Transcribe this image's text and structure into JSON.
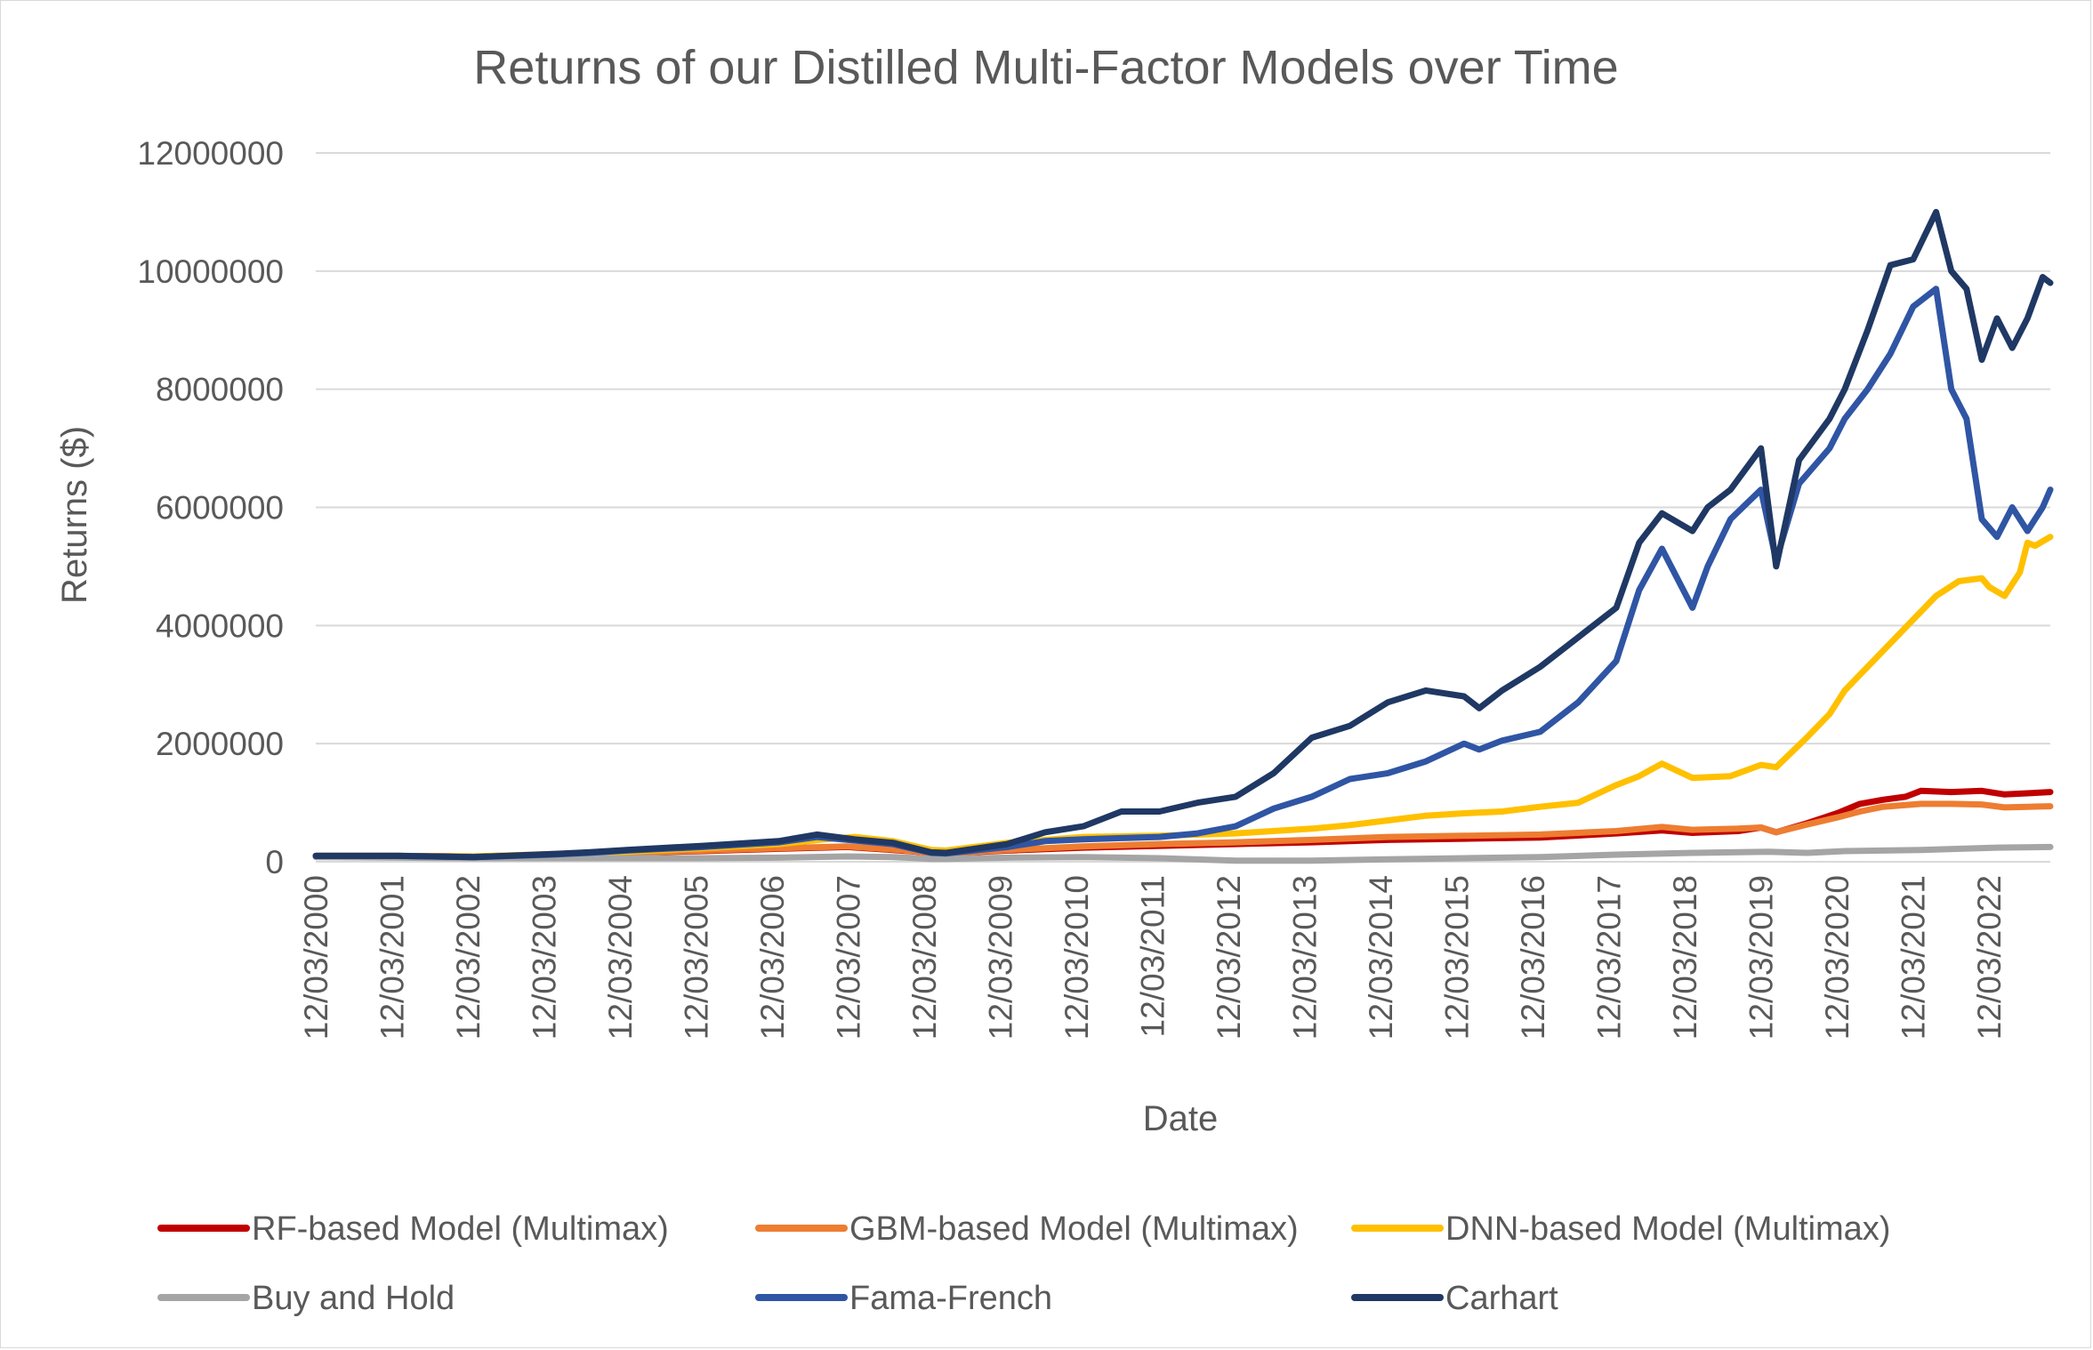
{
  "chart_data": {
    "type": "line",
    "title": "Returns of our Distilled Multi-Factor Models over Time",
    "xlabel": "Date",
    "ylabel": "Returns ($)",
    "ylim": [
      0,
      12000000
    ],
    "y_ticks": [
      0,
      2000000,
      4000000,
      6000000,
      8000000,
      10000000,
      12000000
    ],
    "y_tick_labels": [
      "0",
      "2000000",
      "4000000",
      "6000000",
      "8000000",
      "10000000",
      "12000000"
    ],
    "x_tick_labels": [
      "12/03/2000",
      "12/03/2001",
      "12/03/2002",
      "12/03/2003",
      "12/03/2004",
      "12/03/2005",
      "12/03/2006",
      "12/03/2007",
      "12/03/2008",
      "12/03/2009",
      "12/03/2010",
      "12/03/2011",
      "12/03/2012",
      "12/03/2013",
      "12/03/2014",
      "12/03/2015",
      "12/03/2016",
      "12/03/2017",
      "12/03/2018",
      "12/03/2019",
      "12/03/2020",
      "12/03/2021",
      "12/03/2022"
    ],
    "xlim": [
      2000.92,
      2023.7
    ],
    "grid": true,
    "legend_position": "bottom",
    "series": [
      {
        "name": "RF-based Model (Multimax)",
        "color": "#c00000",
        "x": [
          2000.92,
          2002.0,
          2003.0,
          2004.0,
          2005.0,
          2006.0,
          2007.0,
          2007.9,
          2008.5,
          2009.0,
          2009.2,
          2010.0,
          2011.0,
          2012.0,
          2013.0,
          2014.0,
          2015.0,
          2016.0,
          2017.0,
          2018.0,
          2018.6,
          2019.0,
          2019.6,
          2019.9,
          2020.1,
          2020.5,
          2020.9,
          2021.2,
          2021.5,
          2021.8,
          2022.0,
          2022.4,
          2022.8,
          2023.1,
          2023.4,
          2023.7
        ],
        "y": [
          100000,
          100000,
          90000,
          120000,
          150000,
          180000,
          220000,
          250000,
          200000,
          150000,
          140000,
          190000,
          240000,
          270000,
          300000,
          330000,
          370000,
          390000,
          410000,
          480000,
          530000,
          490000,
          520000,
          580000,
          500000,
          650000,
          820000,
          980000,
          1050000,
          1100000,
          1200000,
          1180000,
          1200000,
          1140000,
          1160000,
          1180000
        ]
      },
      {
        "name": "GBM-based Model (Multimax)",
        "color": "#ed7d31",
        "x": [
          2000.92,
          2002.0,
          2003.0,
          2004.0,
          2005.0,
          2006.0,
          2007.0,
          2007.9,
          2008.5,
          2009.0,
          2009.2,
          2010.0,
          2011.0,
          2012.0,
          2013.0,
          2014.0,
          2015.0,
          2016.0,
          2017.0,
          2018.0,
          2018.6,
          2019.0,
          2019.6,
          2019.9,
          2020.1,
          2020.5,
          2020.9,
          2021.2,
          2021.5,
          2021.8,
          2022.0,
          2022.4,
          2022.8,
          2023.1,
          2023.4,
          2023.7
        ],
        "y": [
          100000,
          100000,
          90000,
          120000,
          150000,
          190000,
          230000,
          260000,
          210000,
          150000,
          140000,
          200000,
          260000,
          300000,
          330000,
          370000,
          420000,
          440000,
          460000,
          520000,
          590000,
          540000,
          560000,
          580000,
          500000,
          630000,
          750000,
          850000,
          930000,
          960000,
          980000,
          980000,
          970000,
          920000,
          930000,
          940000
        ]
      },
      {
        "name": "DNN-based Model (Multimax)",
        "color": "#ffc000",
        "x": [
          2000.92,
          2002.0,
          2003.0,
          2004.0,
          2005.0,
          2006.0,
          2007.0,
          2007.6,
          2008.0,
          2008.5,
          2009.0,
          2009.2,
          2010.0,
          2010.6,
          2011.0,
          2012.0,
          2013.0,
          2014.0,
          2014.5,
          2015.0,
          2015.5,
          2016.0,
          2016.5,
          2017.0,
          2017.5,
          2018.0,
          2018.3,
          2018.6,
          2019.0,
          2019.5,
          2019.9,
          2020.1,
          2020.5,
          2020.8,
          2021.0,
          2021.3,
          2021.6,
          2021.9,
          2022.2,
          2022.5,
          2022.8,
          2022.9,
          2023.1,
          2023.3,
          2023.4,
          2023.5,
          2023.7
        ],
        "y": [
          100000,
          100000,
          90000,
          130000,
          170000,
          230000,
          300000,
          380000,
          420000,
          350000,
          200000,
          190000,
          320000,
          380000,
          420000,
          440000,
          480000,
          560000,
          620000,
          700000,
          780000,
          820000,
          850000,
          930000,
          1000000,
          1300000,
          1450000,
          1660000,
          1420000,
          1450000,
          1640000,
          1600000,
          2100000,
          2500000,
          2900000,
          3300000,
          3700000,
          4100000,
          4500000,
          4750000,
          4800000,
          4650000,
          4500000,
          4900000,
          5400000,
          5350000,
          5500000
        ]
      },
      {
        "name": "Buy and Hold",
        "color": "#a5a5a5",
        "x": [
          2000.92,
          2002.0,
          2003.0,
          2004.0,
          2005.0,
          2006.0,
          2007.0,
          2007.9,
          2008.5,
          2009.0,
          2009.2,
          2010.0,
          2011.0,
          2012.0,
          2013.0,
          2014.0,
          2015.0,
          2016.0,
          2017.0,
          2018.0,
          2019.0,
          2020.0,
          2020.5,
          2021.0,
          2022.0,
          2023.0,
          2023.7
        ],
        "y": [
          80000,
          70000,
          60000,
          60000,
          60000,
          60000,
          70000,
          90000,
          80000,
          50000,
          50000,
          70000,
          80000,
          60000,
          20000,
          20000,
          40000,
          60000,
          80000,
          120000,
          150000,
          170000,
          150000,
          180000,
          200000,
          240000,
          250000
        ]
      },
      {
        "name": "Fama-French",
        "color": "#2f55a4",
        "x": [
          2000.92,
          2002.0,
          2003.0,
          2004.0,
          2004.5,
          2005.0,
          2006.0,
          2007.0,
          2007.5,
          2008.0,
          2008.5,
          2009.0,
          2009.2,
          2010.0,
          2010.5,
          2011.0,
          2011.5,
          2012.0,
          2012.5,
          2013.0,
          2013.5,
          2014.0,
          2014.5,
          2015.0,
          2015.5,
          2016.0,
          2016.2,
          2016.5,
          2017.0,
          2017.5,
          2018.0,
          2018.3,
          2018.6,
          2019.0,
          2019.2,
          2019.5,
          2019.9,
          2020.1,
          2020.4,
          2020.8,
          2021.0,
          2021.3,
          2021.6,
          2021.9,
          2022.2,
          2022.4,
          2022.6,
          2022.8,
          2023.0,
          2023.2,
          2023.4,
          2023.6,
          2023.7
        ],
        "y": [
          100000,
          100000,
          80000,
          120000,
          150000,
          190000,
          250000,
          330000,
          420000,
          360000,
          300000,
          150000,
          140000,
          250000,
          350000,
          380000,
          400000,
          420000,
          480000,
          600000,
          900000,
          1100000,
          1400000,
          1500000,
          1700000,
          2000000,
          1900000,
          2050000,
          2200000,
          2700000,
          3400000,
          4600000,
          5300000,
          4300000,
          5000000,
          5800000,
          6300000,
          5100000,
          6400000,
          7000000,
          7500000,
          8000000,
          8600000,
          9400000,
          9700000,
          8000000,
          7500000,
          5800000,
          5500000,
          6000000,
          5600000,
          6000000,
          6300000
        ]
      },
      {
        "name": "Carhart",
        "color": "#1f3864",
        "x": [
          2000.92,
          2002.0,
          2003.0,
          2004.0,
          2004.5,
          2005.0,
          2006.0,
          2007.0,
          2007.5,
          2008.0,
          2008.5,
          2009.0,
          2009.2,
          2010.0,
          2010.5,
          2011.0,
          2011.5,
          2012.0,
          2012.5,
          2013.0,
          2013.5,
          2014.0,
          2014.5,
          2015.0,
          2015.5,
          2016.0,
          2016.2,
          2016.5,
          2017.0,
          2017.5,
          2018.0,
          2018.3,
          2018.6,
          2019.0,
          2019.2,
          2019.5,
          2019.9,
          2020.1,
          2020.4,
          2020.8,
          2021.0,
          2021.3,
          2021.6,
          2021.9,
          2022.2,
          2022.4,
          2022.6,
          2022.8,
          2023.0,
          2023.2,
          2023.4,
          2023.6,
          2023.7
        ],
        "y": [
          100000,
          100000,
          80000,
          130000,
          160000,
          200000,
          270000,
          350000,
          460000,
          380000,
          320000,
          160000,
          150000,
          300000,
          500000,
          600000,
          850000,
          850000,
          1000000,
          1100000,
          1500000,
          2100000,
          2300000,
          2700000,
          2900000,
          2800000,
          2600000,
          2900000,
          3300000,
          3800000,
          4300000,
          5400000,
          5900000,
          5600000,
          6000000,
          6300000,
          7000000,
          5000000,
          6800000,
          7500000,
          8000000,
          9000000,
          10100000,
          10200000,
          11000000,
          10000000,
          9700000,
          8500000,
          9200000,
          8700000,
          9200000,
          9900000,
          9800000
        ]
      }
    ]
  }
}
